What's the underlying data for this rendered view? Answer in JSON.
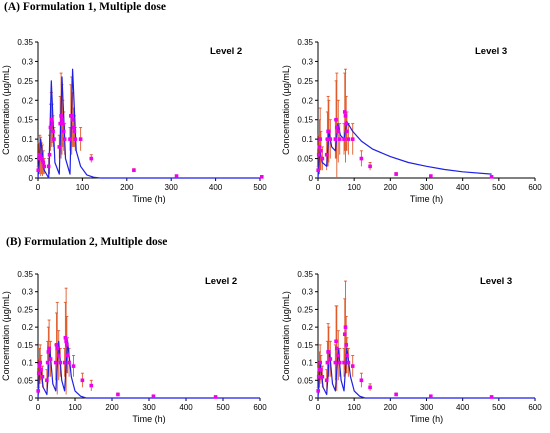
{
  "figure": {
    "section_a": "(A) Formulation 1, Multiple dose",
    "section_b": "(B) Formulation 2, Multiple dose"
  },
  "colors": {
    "model": "#1f1fe6",
    "observed": "#ee00ee",
    "error": "#e05a2a"
  },
  "chart_data": [
    {
      "type": "scatter",
      "title": "Level 2",
      "xlabel": "Time (h)",
      "ylabel": "Concentration (µg/mL)",
      "xlim": [
        0,
        500
      ],
      "ylim": [
        0,
        0.35
      ],
      "xticks": [
        0,
        100,
        200,
        300,
        400,
        500
      ],
      "yticks": [
        0,
        0.05,
        0.1,
        0.15,
        0.2,
        0.25,
        0.3,
        0.35
      ],
      "grid": false,
      "series": [
        {
          "role": "observed",
          "x": [
            0.5,
            2,
            4,
            6,
            8,
            10,
            12,
            14,
            24,
            26,
            28,
            30,
            32,
            34,
            36,
            48,
            50,
            52,
            54,
            56,
            58,
            60,
            72,
            74,
            76,
            78,
            80,
            82,
            84,
            96,
            120,
            216,
            312,
            504
          ],
          "y": [
            0.02,
            0.05,
            0.06,
            0.055,
            0.05,
            0.045,
            0.04,
            0.03,
            0.03,
            0.06,
            0.13,
            0.15,
            0.14,
            0.12,
            0.1,
            0.08,
            0.14,
            0.16,
            0.15,
            0.14,
            0.12,
            0.1,
            0.1,
            0.16,
            0.16,
            0.15,
            0.13,
            0.12,
            0.1,
            0.1,
            0.05,
            0.02,
            0.005,
            0.003
          ],
          "err": [
            0.01,
            0.04,
            0.05,
            0.05,
            0.04,
            0.04,
            0.03,
            0.02,
            0.02,
            0.05,
            0.06,
            0.07,
            0.05,
            0.04,
            0.03,
            0.03,
            0.07,
            0.11,
            0.09,
            0.06,
            0.05,
            0.04,
            0.03,
            0.08,
            0.1,
            0.07,
            0.05,
            0.04,
            0.03,
            0.03,
            0.01,
            0.004,
            0.002,
            0.001
          ]
        },
        {
          "role": "model",
          "x": [
            0,
            6,
            14,
            24,
            30,
            38,
            48,
            54,
            62,
            72,
            78,
            86,
            96,
            110,
            125,
            140,
            500
          ],
          "y": [
            0,
            0.1,
            0.02,
            0,
            0.25,
            0.04,
            0.01,
            0.26,
            0.05,
            0.01,
            0.28,
            0.07,
            0.03,
            0.008,
            0.002,
            0,
            0
          ]
        }
      ]
    },
    {
      "type": "scatter",
      "title": "Level 3",
      "xlabel": "Time (h)",
      "ylabel": "Concentration (µg/mL)",
      "xlim": [
        0,
        600
      ],
      "ylim": [
        0,
        0.35
      ],
      "xticks": [
        0,
        100,
        200,
        300,
        400,
        500,
        600
      ],
      "yticks": [
        0,
        0.05,
        0.1,
        0.15,
        0.2,
        0.25,
        0.3,
        0.35
      ],
      "grid": false,
      "series": [
        {
          "role": "observed",
          "x": [
            0.5,
            2,
            4,
            6,
            8,
            12,
            24,
            26,
            28,
            30,
            34,
            48,
            50,
            52,
            56,
            60,
            72,
            74,
            76,
            78,
            80,
            84,
            96,
            120,
            144,
            216,
            312,
            480
          ],
          "y": [
            0.02,
            0.06,
            0.08,
            0.1,
            0.07,
            0.05,
            0.06,
            0.1,
            0.12,
            0.12,
            0.1,
            0.1,
            0.15,
            0.13,
            0.12,
            0.1,
            0.1,
            0.17,
            0.16,
            0.14,
            0.12,
            0.1,
            0.1,
            0.05,
            0.03,
            0.01,
            0.005,
            0.003
          ],
          "err": [
            0.01,
            0.05,
            0.07,
            0.08,
            0.05,
            0.03,
            0.04,
            0.07,
            0.09,
            0.08,
            0.05,
            0.05,
            0.1,
            0.14,
            0.08,
            0.04,
            0.04,
            0.1,
            0.12,
            0.07,
            0.05,
            0.04,
            0.04,
            0.02,
            0.01,
            0.004,
            0.002,
            0.001
          ]
        },
        {
          "role": "model",
          "x": [
            0,
            5,
            12,
            24,
            30,
            38,
            48,
            55,
            62,
            72,
            80,
            96,
            120,
            150,
            200,
            250,
            300,
            350,
            400,
            480
          ],
          "y": [
            0,
            0.07,
            0.04,
            0.03,
            0.12,
            0.08,
            0.07,
            0.14,
            0.11,
            0.1,
            0.145,
            0.12,
            0.095,
            0.075,
            0.055,
            0.04,
            0.03,
            0.022,
            0.016,
            0.01
          ]
        }
      ]
    },
    {
      "type": "scatter",
      "title": "Level 2",
      "xlabel": "Time (h)",
      "ylabel": "Concentration (µg/mL)",
      "xlim": [
        0,
        600
      ],
      "ylim": [
        0,
        0.35
      ],
      "xticks": [
        0,
        100,
        200,
        300,
        400,
        500,
        600
      ],
      "yticks": [
        0,
        0.05,
        0.1,
        0.15,
        0.2,
        0.25,
        0.3,
        0.35
      ],
      "grid": false,
      "series": [
        {
          "role": "observed",
          "x": [
            0.5,
            2,
            4,
            6,
            8,
            12,
            24,
            26,
            28,
            30,
            34,
            48,
            50,
            52,
            56,
            60,
            72,
            74,
            76,
            78,
            80,
            84,
            96,
            120,
            144,
            216,
            312,
            480
          ],
          "y": [
            0.02,
            0.07,
            0.09,
            0.1,
            0.08,
            0.06,
            0.05,
            0.1,
            0.13,
            0.14,
            0.11,
            0.1,
            0.15,
            0.14,
            0.12,
            0.1,
            0.1,
            0.17,
            0.16,
            0.15,
            0.12,
            0.1,
            0.09,
            0.05,
            0.035,
            0.01,
            0.005,
            0.003
          ],
          "err": [
            0.01,
            0.04,
            0.05,
            0.05,
            0.04,
            0.03,
            0.03,
            0.06,
            0.07,
            0.08,
            0.05,
            0.05,
            0.09,
            0.13,
            0.07,
            0.04,
            0.04,
            0.1,
            0.15,
            0.08,
            0.05,
            0.04,
            0.03,
            0.02,
            0.015,
            0.004,
            0.002,
            0.001
          ]
        },
        {
          "role": "model",
          "x": [
            0,
            6,
            14,
            24,
            32,
            40,
            48,
            56,
            64,
            72,
            80,
            90,
            100,
            115,
            130,
            600
          ],
          "y": [
            0,
            0.1,
            0.03,
            0.01,
            0.14,
            0.04,
            0.02,
            0.16,
            0.05,
            0.02,
            0.16,
            0.06,
            0.02,
            0.005,
            0,
            0
          ]
        }
      ]
    },
    {
      "type": "scatter",
      "title": "Level 3",
      "xlabel": "Time (h)",
      "ylabel": "Concentration (µg/mL)",
      "xlim": [
        0,
        600
      ],
      "ylim": [
        0,
        0.35
      ],
      "xticks": [
        0,
        100,
        200,
        300,
        400,
        500,
        600
      ],
      "yticks": [
        0,
        0.05,
        0.1,
        0.15,
        0.2,
        0.25,
        0.3,
        0.35
      ],
      "grid": false,
      "series": [
        {
          "role": "observed",
          "x": [
            0.5,
            2,
            4,
            6,
            8,
            12,
            24,
            26,
            28,
            30,
            34,
            48,
            50,
            52,
            56,
            60,
            72,
            74,
            76,
            78,
            80,
            84,
            96,
            120,
            144,
            216,
            312,
            480
          ],
          "y": [
            0.02,
            0.06,
            0.08,
            0.1,
            0.08,
            0.06,
            0.05,
            0.1,
            0.13,
            0.13,
            0.11,
            0.1,
            0.16,
            0.14,
            0.12,
            0.1,
            0.1,
            0.18,
            0.2,
            0.15,
            0.12,
            0.1,
            0.09,
            0.05,
            0.03,
            0.01,
            0.005,
            0.003
          ],
          "err": [
            0.01,
            0.04,
            0.05,
            0.05,
            0.04,
            0.03,
            0.03,
            0.06,
            0.08,
            0.07,
            0.05,
            0.05,
            0.1,
            0.12,
            0.07,
            0.04,
            0.04,
            0.1,
            0.13,
            0.08,
            0.05,
            0.04,
            0.03,
            0.02,
            0.01,
            0.004,
            0.002,
            0.001
          ]
        },
        {
          "role": "model",
          "x": [
            0,
            6,
            14,
            24,
            32,
            40,
            48,
            56,
            64,
            72,
            80,
            90,
            100,
            115,
            130,
            600
          ],
          "y": [
            0,
            0.1,
            0.03,
            0.01,
            0.13,
            0.04,
            0.02,
            0.14,
            0.05,
            0.02,
            0.14,
            0.06,
            0.02,
            0.005,
            0,
            0
          ]
        }
      ]
    }
  ]
}
